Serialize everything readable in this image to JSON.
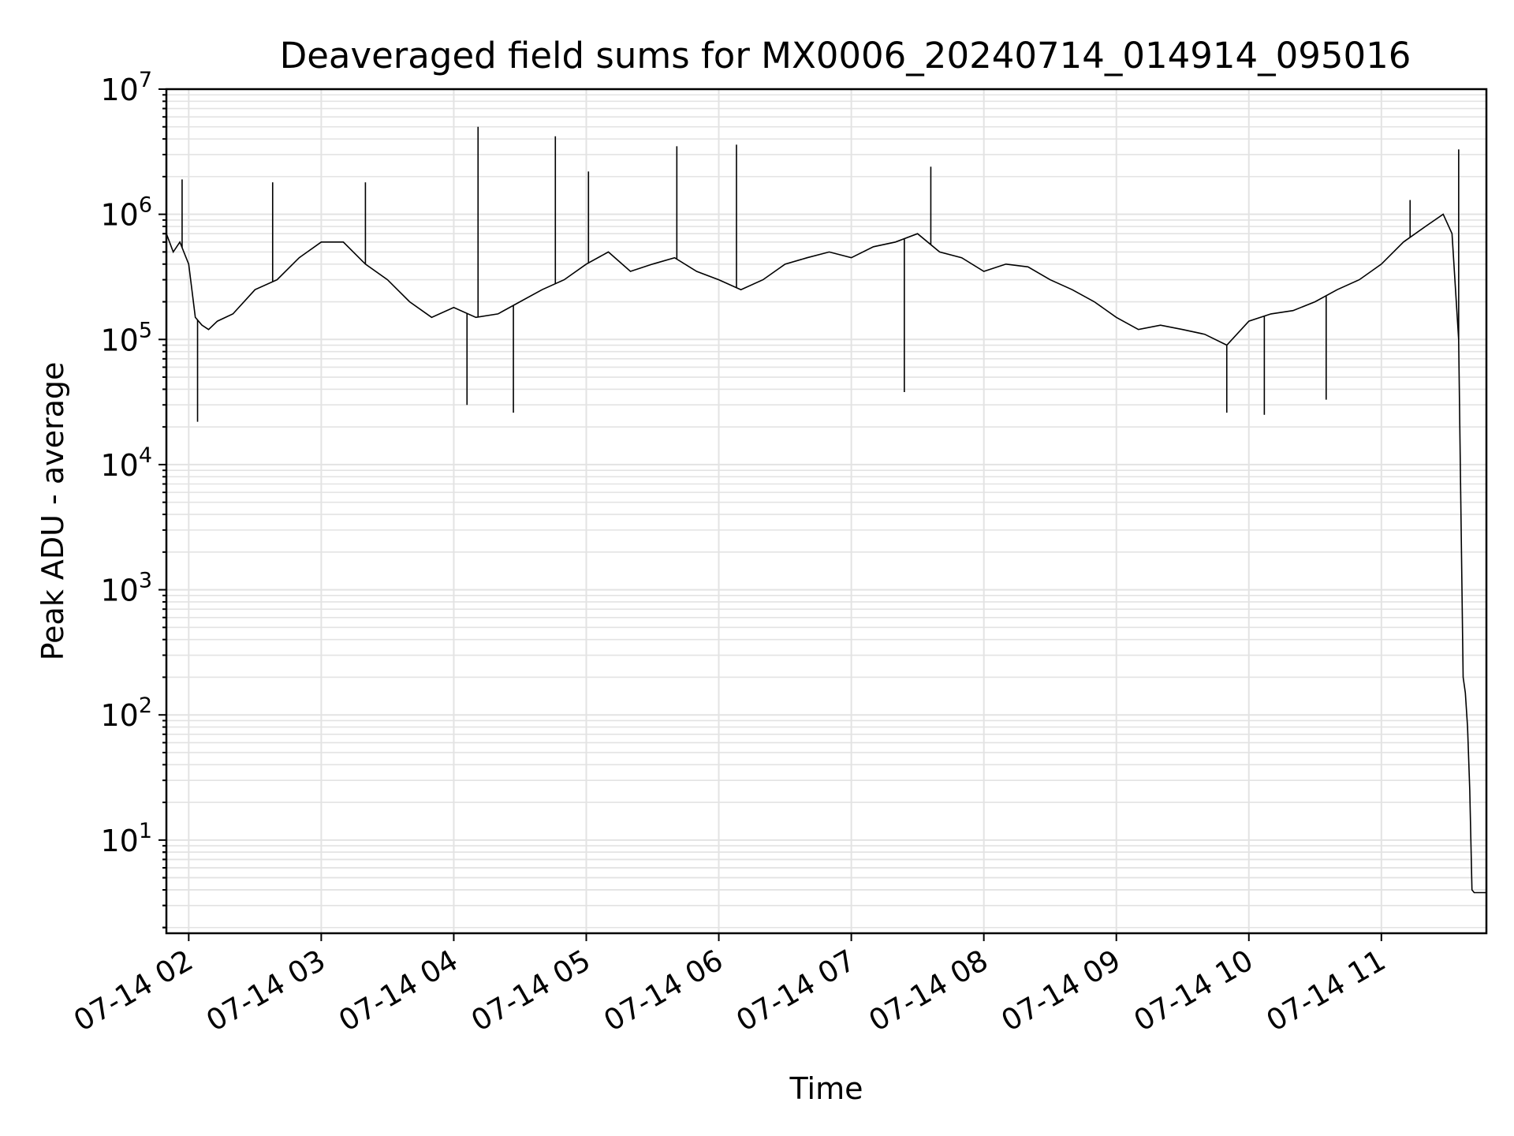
{
  "chart_data": {
    "type": "line",
    "title": "Deaveraged field sums for MX0006_20240714_014914_095016",
    "xlabel": "Time",
    "ylabel": "Peak ADU - average",
    "yscale": "log",
    "ylim": [
      1.8,
      10000000
    ],
    "xlim": [
      "2024-07-14T01:49:53",
      "2024-07-14T11:47:33"
    ],
    "x_ticks": [
      {
        "time": "2024-07-14T02:00:00",
        "label": "07-14 02"
      },
      {
        "time": "2024-07-14T03:00:00",
        "label": "07-14 03"
      },
      {
        "time": "2024-07-14T04:00:00",
        "label": "07-14 04"
      },
      {
        "time": "2024-07-14T05:00:00",
        "label": "07-14 05"
      },
      {
        "time": "2024-07-14T06:00:00",
        "label": "07-14 06"
      },
      {
        "time": "2024-07-14T07:00:00",
        "label": "07-14 07"
      },
      {
        "time": "2024-07-14T08:00:00",
        "label": "07-14 08"
      },
      {
        "time": "2024-07-14T09:00:00",
        "label": "07-14 09"
      },
      {
        "time": "2024-07-14T10:00:00",
        "label": "07-14 10"
      },
      {
        "time": "2024-07-14T11:00:00",
        "label": "07-14 11"
      }
    ],
    "y_ticks": [
      {
        "value": 10,
        "base": "10",
        "exp": "1"
      },
      {
        "value": 100,
        "base": "10",
        "exp": "2"
      },
      {
        "value": 1000,
        "base": "10",
        "exp": "3"
      },
      {
        "value": 10000,
        "base": "10",
        "exp": "4"
      },
      {
        "value": 100000,
        "base": "10",
        "exp": "5"
      },
      {
        "value": 1000000,
        "base": "10",
        "exp": "6"
      },
      {
        "value": 10000000,
        "base": "10",
        "exp": "7"
      }
    ],
    "grid": true,
    "line_color": "#000000",
    "grid_color": "#e3e3e3",
    "series": [
      {
        "x": [
          "2024-07-14T01:49:53",
          "2024-07-14T01:53:00",
          "2024-07-14T01:56:00",
          "2024-07-14T02:00:00",
          "2024-07-14T02:03:00",
          "2024-07-14T02:06:00",
          "2024-07-14T02:09:00",
          "2024-07-14T02:13:00",
          "2024-07-14T02:20:00",
          "2024-07-14T02:30:00",
          "2024-07-14T02:40:00",
          "2024-07-14T02:50:00",
          "2024-07-14T03:00:00",
          "2024-07-14T03:10:00",
          "2024-07-14T03:20:00",
          "2024-07-14T03:30:00",
          "2024-07-14T03:40:00",
          "2024-07-14T03:50:00",
          "2024-07-14T04:00:00",
          "2024-07-14T04:10:00",
          "2024-07-14T04:20:00",
          "2024-07-14T04:30:00",
          "2024-07-14T04:40:00",
          "2024-07-14T04:50:00",
          "2024-07-14T05:00:00",
          "2024-07-14T05:10:00",
          "2024-07-14T05:20:00",
          "2024-07-14T05:30:00",
          "2024-07-14T05:40:00",
          "2024-07-14T05:50:00",
          "2024-07-14T06:00:00",
          "2024-07-14T06:10:00",
          "2024-07-14T06:20:00",
          "2024-07-14T06:30:00",
          "2024-07-14T06:40:00",
          "2024-07-14T06:50:00",
          "2024-07-14T07:00:00",
          "2024-07-14T07:10:00",
          "2024-07-14T07:20:00",
          "2024-07-14T07:30:00",
          "2024-07-14T07:40:00",
          "2024-07-14T07:50:00",
          "2024-07-14T08:00:00",
          "2024-07-14T08:10:00",
          "2024-07-14T08:20:00",
          "2024-07-14T08:30:00",
          "2024-07-14T08:40:00",
          "2024-07-14T08:50:00",
          "2024-07-14T09:00:00",
          "2024-07-14T09:10:00",
          "2024-07-14T09:20:00",
          "2024-07-14T09:30:00",
          "2024-07-14T09:40:00",
          "2024-07-14T09:50:00",
          "2024-07-14T10:00:00",
          "2024-07-14T10:10:00",
          "2024-07-14T10:20:00",
          "2024-07-14T10:30:00",
          "2024-07-14T10:40:00",
          "2024-07-14T10:50:00",
          "2024-07-14T11:00:00",
          "2024-07-14T11:10:00",
          "2024-07-14T11:20:00",
          "2024-07-14T11:28:00",
          "2024-07-14T11:32:00",
          "2024-07-14T11:35:00",
          "2024-07-14T11:37:00",
          "2024-07-14T11:38:00",
          "2024-07-14T11:39:00",
          "2024-07-14T11:40:00",
          "2024-07-14T11:41:00",
          "2024-07-14T11:42:00",
          "2024-07-14T11:44:00",
          "2024-07-14T11:47:33"
        ],
        "values": [
          700000,
          500000,
          600000,
          400000,
          150000,
          130000,
          120000,
          140000,
          160000,
          250000,
          300000,
          450000,
          600000,
          600000,
          400000,
          300000,
          200000,
          150000,
          180000,
          150000,
          160000,
          200000,
          250000,
          300000,
          400000,
          500000,
          350000,
          400000,
          450000,
          350000,
          300000,
          250000,
          300000,
          400000,
          450000,
          500000,
          450000,
          550000,
          600000,
          700000,
          500000,
          450000,
          350000,
          400000,
          380000,
          300000,
          250000,
          200000,
          150000,
          120000,
          130000,
          120000,
          110000,
          90000,
          140000,
          160000,
          170000,
          200000,
          250000,
          300000,
          400000,
          600000,
          800000,
          1000000,
          700000,
          100000,
          200,
          150,
          80,
          25,
          4,
          3.8,
          3.8,
          3.8
        ]
      }
    ],
    "spikes": [
      {
        "x": "2024-07-14T01:57:00",
        "value": 1900000
      },
      {
        "x": "2024-07-14T02:04:00",
        "value": 22000
      },
      {
        "x": "2024-07-14T02:38:00",
        "value": 1800000
      },
      {
        "x": "2024-07-14T03:20:00",
        "value": 1800000
      },
      {
        "x": "2024-07-14T04:06:00",
        "value": 30000
      },
      {
        "x": "2024-07-14T04:11:00",
        "value": 5000000
      },
      {
        "x": "2024-07-14T04:27:00",
        "value": 26000
      },
      {
        "x": "2024-07-14T04:46:00",
        "value": 4200000
      },
      {
        "x": "2024-07-14T05:01:00",
        "value": 2200000
      },
      {
        "x": "2024-07-14T05:41:00",
        "value": 3500000
      },
      {
        "x": "2024-07-14T06:08:00",
        "value": 3600000
      },
      {
        "x": "2024-07-14T07:24:00",
        "value": 38000
      },
      {
        "x": "2024-07-14T07:36:00",
        "value": 2400000
      },
      {
        "x": "2024-07-14T09:50:00",
        "value": 26000
      },
      {
        "x": "2024-07-14T10:07:00",
        "value": 25000
      },
      {
        "x": "2024-07-14T10:35:00",
        "value": 33000
      },
      {
        "x": "2024-07-14T11:13:00",
        "value": 1300000
      },
      {
        "x": "2024-07-14T11:35:00",
        "value": 3300000
      }
    ]
  }
}
